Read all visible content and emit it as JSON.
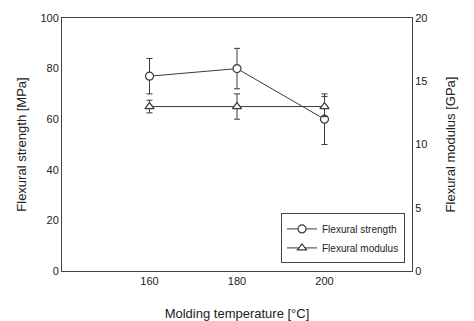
{
  "chart_data": {
    "type": "line",
    "xlabel": "Molding temperature [°C]",
    "ylabel": "Flexural strength [MPa]",
    "y2label": "Flexural modulus [GPa]",
    "x": [
      160,
      180,
      200
    ],
    "series": [
      {
        "name": "Flexural strength",
        "color": "#3a3a3a",
        "marker": "circle",
        "values": [
          77,
          80,
          60
        ],
        "errors": [
          7,
          8,
          10
        ]
      },
      {
        "name": "Flexural modulus",
        "color": "#3a3a3a",
        "marker": "triangle-up",
        "axis": "y2",
        "values": [
          13.0,
          13.0,
          13.0
        ],
        "errors": [
          0.5,
          1.0,
          0.8
        ]
      }
    ],
    "xlim": [
      140,
      220
    ],
    "xticks": [
      160,
      180,
      200
    ],
    "ylim": [
      0,
      100
    ],
    "yticks": [
      0,
      20,
      40,
      60,
      80,
      100
    ],
    "y2lim": [
      0,
      20
    ],
    "y2ticks": [
      0,
      5,
      10,
      15,
      20
    ],
    "grid": false,
    "legend": "lower right"
  }
}
